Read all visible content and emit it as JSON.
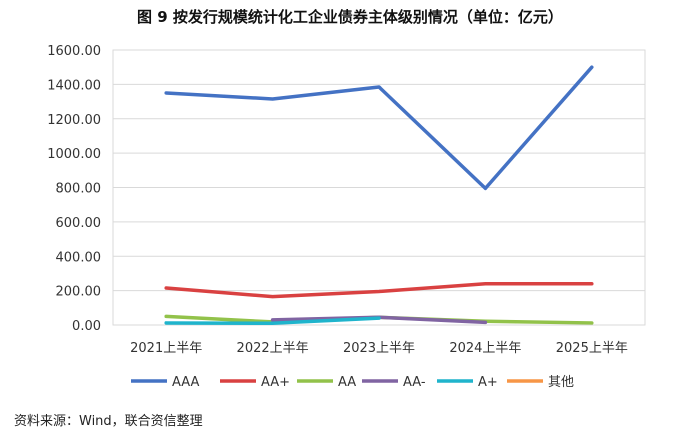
{
  "title": "图 9 按发行规模统计化工企业债券主体级别情况（单位：亿元）",
  "source": "资料来源：Wind，联合资信整理",
  "chart_data": {
    "type": "line",
    "categories": [
      "2021上半年",
      "2022上半年",
      "2023上半年",
      "2024上半年",
      "2025上半年"
    ],
    "ylim": [
      0,
      1600
    ],
    "yticks": [
      "0.00",
      "200.00",
      "400.00",
      "600.00",
      "800.00",
      "1000.00",
      "1200.00",
      "1400.00",
      "1600.00"
    ],
    "grid": true,
    "legend_position": "bottom",
    "series": [
      {
        "name": "AAA",
        "color": "#4472C4",
        "values": [
          1350,
          1315,
          1385,
          795,
          1500
        ]
      },
      {
        "name": "AA+",
        "color": "#D94141",
        "values": [
          215,
          165,
          195,
          240,
          240
        ]
      },
      {
        "name": "AA",
        "color": "#92C24A",
        "values": [
          50,
          18,
          45,
          22,
          12
        ]
      },
      {
        "name": "AA-",
        "color": "#8064A2",
        "values": [
          null,
          30,
          45,
          15,
          null
        ]
      },
      {
        "name": "A+",
        "color": "#1FB4CC",
        "values": [
          12,
          10,
          40,
          null,
          null
        ]
      },
      {
        "name": "其他",
        "color": "#F79646",
        "values": [
          null,
          null,
          null,
          null,
          null
        ]
      }
    ]
  }
}
